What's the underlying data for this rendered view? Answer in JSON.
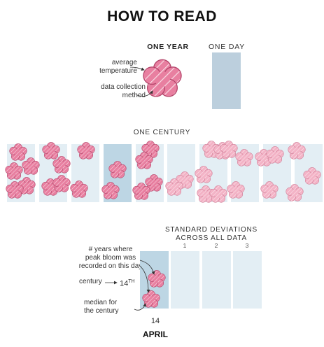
{
  "title": "HOW TO READ",
  "legend": {
    "one_year": "ONE YEAR",
    "one_day": "ONE DAY",
    "average_temperature": "average\ntemperature",
    "data_collection_method": "data collection\nmethod"
  },
  "one_century": "ONE CENTURY",
  "bottom": {
    "std_title": "STANDARD DEVIATIONS\nACROSS ALL DATA",
    "std_ticks": [
      "1",
      "2",
      "3"
    ],
    "years_note": "# years where\npeak bloom was\nrecorded on this day",
    "century_label": "century",
    "century_value": "14",
    "century_suffix": "TH",
    "median_label": "median for\nthe century",
    "day_value": "14",
    "month_value": "APRIL"
  },
  "colors": {
    "flower_dark": "#e87fa0",
    "flower_light": "#f3b3c6",
    "column_light": "#e3eef4",
    "column_mid": "#bdd6e4",
    "day_bar": "#bccfdd"
  }
}
